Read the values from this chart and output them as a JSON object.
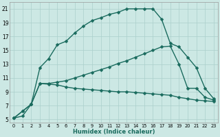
{
  "xlabel": "Humidex (Indice chaleur)",
  "bg_color": "#cce8e4",
  "grid_color": "#aacfcb",
  "line_color": "#1a6b5e",
  "xlim": [
    -0.5,
    23.5
  ],
  "ylim": [
    4.5,
    22
  ],
  "xticks": [
    0,
    1,
    2,
    3,
    4,
    5,
    6,
    7,
    8,
    9,
    10,
    11,
    12,
    13,
    14,
    15,
    16,
    17,
    18,
    19,
    20,
    21,
    22,
    23
  ],
  "yticks": [
    5,
    7,
    9,
    11,
    13,
    15,
    17,
    19,
    21
  ],
  "line1_x": [
    0,
    1,
    2,
    3,
    4,
    5,
    6,
    7,
    8,
    9,
    10,
    11,
    12,
    13,
    14,
    15,
    16,
    17,
    18,
    19,
    20,
    21,
    22,
    23
  ],
  "line1_y": [
    5.2,
    6.2,
    7.2,
    10.2,
    10.1,
    10.0,
    9.7,
    9.5,
    9.4,
    9.3,
    9.2,
    9.1,
    9.0,
    9.0,
    8.9,
    8.8,
    8.7,
    8.6,
    8.5,
    8.2,
    8.0,
    7.8,
    7.7,
    7.6
  ],
  "line2_x": [
    0,
    1,
    2,
    3,
    4,
    5,
    6,
    7,
    8,
    9,
    10,
    11,
    12,
    13,
    14,
    15,
    16,
    17,
    18,
    19,
    20,
    21,
    22,
    23
  ],
  "line2_y": [
    5.2,
    6.2,
    7.2,
    10.2,
    10.2,
    10.4,
    10.6,
    11.0,
    11.4,
    11.8,
    12.2,
    12.6,
    13.1,
    13.5,
    14.0,
    14.5,
    15.0,
    15.5,
    15.6,
    13.0,
    9.5,
    9.5,
    8.2,
    7.8
  ],
  "line3_x": [
    0,
    1,
    2,
    3,
    4,
    5,
    6,
    7,
    8,
    9,
    10,
    11,
    12,
    13,
    14,
    15,
    16,
    17,
    18,
    19,
    20,
    21,
    22,
    23
  ],
  "line3_y": [
    5.2,
    5.5,
    7.2,
    12.5,
    13.8,
    15.8,
    16.3,
    17.5,
    18.5,
    19.3,
    19.7,
    20.2,
    20.5,
    21.0,
    21.0,
    21.0,
    21.0,
    19.5,
    16.0,
    15.5,
    14.0,
    12.5,
    9.5,
    8.0
  ],
  "markersize": 2.5,
  "linewidth": 1.0
}
